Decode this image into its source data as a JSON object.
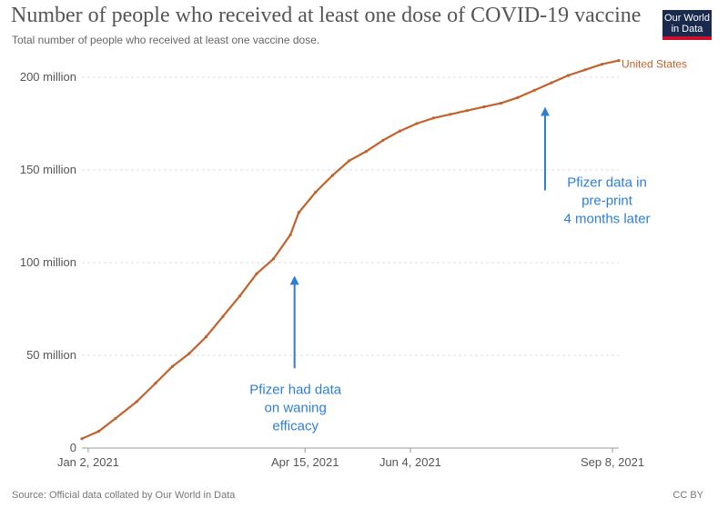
{
  "header": {
    "title": "Number of people who received at least one dose of COVID-19 vaccine",
    "subtitle": "Total number of people who received at least one vaccine dose.",
    "logo_line1": "Our World",
    "logo_line2": "in Data"
  },
  "footer": {
    "source": "Source: Official data collated by Our World in Data",
    "license": "CC BY"
  },
  "colors": {
    "series": "#c1622b",
    "annotation": "#2f7fd1",
    "grid": "#dddddd",
    "axis_text": "#555555"
  },
  "chart_data": {
    "type": "line",
    "title": "Number of people who received at least one dose of COVID-19 vaccine",
    "subtitle": "Total number of people who received at least one vaccine dose.",
    "xlabel": "",
    "ylabel": "",
    "ylim": [
      0,
      210
    ],
    "xlim": [
      "2020-12-30",
      "2021-09-11"
    ],
    "y_ticks": [
      {
        "value": 0,
        "label": "0"
      },
      {
        "value": 50,
        "label": "50 million"
      },
      {
        "value": 100,
        "label": "100 million"
      },
      {
        "value": 150,
        "label": "150 million"
      },
      {
        "value": 200,
        "label": "200 million"
      }
    ],
    "x_ticks": [
      {
        "value": "2021-01-02",
        "label": "Jan 2, 2021"
      },
      {
        "value": "2021-04-15",
        "label": "Apr 15, 2021"
      },
      {
        "value": "2021-06-04",
        "label": "Jun 4, 2021"
      },
      {
        "value": "2021-09-08",
        "label": "Sep 8, 2021"
      }
    ],
    "grid": true,
    "series": [
      {
        "name": "United States",
        "x": [
          "2020-12-30",
          "2021-01-07",
          "2021-01-15",
          "2021-01-25",
          "2021-02-03",
          "2021-02-11",
          "2021-02-19",
          "2021-02-27",
          "2021-03-07",
          "2021-03-15",
          "2021-03-23",
          "2021-03-31",
          "2021-04-08",
          "2021-04-12",
          "2021-04-20",
          "2021-04-28",
          "2021-05-06",
          "2021-05-14",
          "2021-05-22",
          "2021-05-30",
          "2021-06-07",
          "2021-06-15",
          "2021-06-23",
          "2021-07-01",
          "2021-07-09",
          "2021-07-17",
          "2021-07-25",
          "2021-08-02",
          "2021-08-10",
          "2021-08-18",
          "2021-08-26",
          "2021-09-03",
          "2021-09-11"
        ],
        "values": [
          5,
          9,
          16,
          25,
          35,
          44,
          51,
          60,
          71,
          82,
          94,
          102,
          115,
          127,
          138,
          147,
          155,
          160,
          166,
          171,
          175,
          178,
          180,
          182,
          184,
          186,
          189,
          193,
          197,
          201,
          204,
          207,
          209
        ]
      }
    ],
    "annotations": [
      {
        "text": "Pfizer had data\non waning\nefficacy",
        "x": "2021-04-10",
        "y_from": 43,
        "y_to": 92
      },
      {
        "text": "Pfizer data in\npre-print\n4 months later",
        "x": "2021-08-07",
        "y_from": 139,
        "y_to": 183
      }
    ]
  }
}
